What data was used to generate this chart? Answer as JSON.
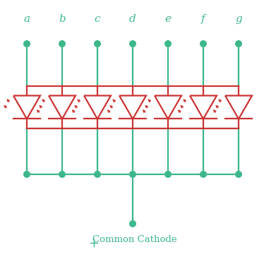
{
  "teal": "#3CB88A",
  "red": "#CC3333",
  "bg": "#FFFFFF",
  "labels": [
    "a",
    "b",
    "c",
    "d",
    "e",
    "f",
    "g"
  ],
  "n_leds": 7,
  "figsize": [
    3.91,
    3.67
  ],
  "dpi": 100,
  "common_label": "Common Cathode"
}
